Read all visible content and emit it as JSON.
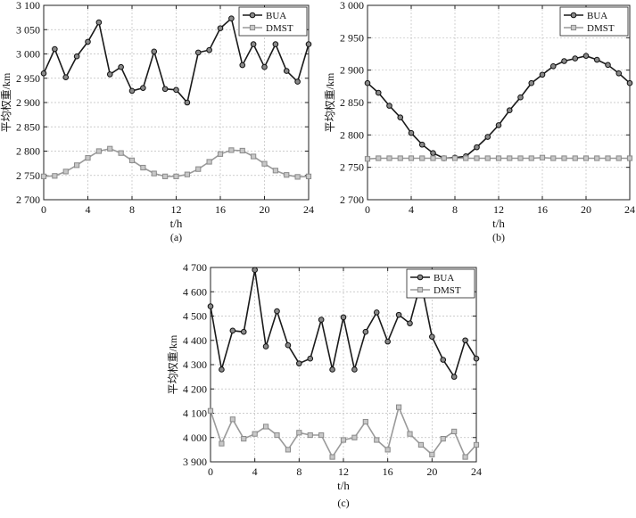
{
  "chart_data": [
    {
      "type": "line",
      "caption": "(a)",
      "xlabel": "t/h",
      "ylabel": "平均权重/km",
      "xlim": [
        0,
        24
      ],
      "ylim": [
        2700,
        3100
      ],
      "xticks": [
        0,
        4,
        8,
        12,
        16,
        20,
        24
      ],
      "yticks": [
        2700,
        2750,
        2800,
        2850,
        2900,
        2950,
        3000,
        3050,
        3100
      ],
      "ytick_labels": [
        "2 700",
        "2 750",
        "2 800",
        "2 850",
        "2 900",
        "2 950",
        "3 000",
        "3 050",
        "3 100"
      ],
      "grid": true,
      "legend": "top-right",
      "x": [
        0,
        1,
        2,
        3,
        4,
        5,
        6,
        7,
        8,
        9,
        10,
        11,
        12,
        13,
        14,
        15,
        16,
        17,
        18,
        19,
        20,
        21,
        22,
        23,
        24
      ],
      "series": [
        {
          "name": "BUA",
          "color": "#1a1a1a",
          "values": [
            2960,
            3010,
            2952,
            2995,
            3025,
            3065,
            2958,
            2973,
            2924,
            2930,
            3005,
            2928,
            2926,
            2900,
            3003,
            3008,
            3053,
            3073,
            2977,
            3020,
            2973,
            3020,
            2965,
            2943,
            3020
          ]
        },
        {
          "name": "DMST",
          "color": "#9a9a9a",
          "values": [
            2748,
            2749,
            2758,
            2771,
            2786,
            2800,
            2805,
            2796,
            2781,
            2766,
            2754,
            2748,
            2748,
            2752,
            2763,
            2778,
            2794,
            2802,
            2801,
            2789,
            2774,
            2760,
            2751,
            2747,
            2748
          ]
        }
      ]
    },
    {
      "type": "line",
      "caption": "(b)",
      "xlabel": "t/h",
      "ylabel": "平均权重/km",
      "xlim": [
        0,
        24
      ],
      "ylim": [
        2700,
        3000
      ],
      "xticks": [
        0,
        4,
        8,
        12,
        16,
        20,
        24
      ],
      "yticks": [
        2700,
        2750,
        2800,
        2850,
        2900,
        2950,
        3000
      ],
      "ytick_labels": [
        "2 700",
        "2 750",
        "2 800",
        "2 850",
        "2 900",
        "2 950",
        "3 000"
      ],
      "grid": true,
      "legend": "top-right",
      "x": [
        0,
        1,
        2,
        3,
        4,
        5,
        6,
        7,
        8,
        9,
        10,
        11,
        12,
        13,
        14,
        15,
        16,
        17,
        18,
        19,
        20,
        21,
        22,
        23,
        24
      ],
      "series": [
        {
          "name": "BUA",
          "color": "#1a1a1a",
          "values": [
            2880,
            2865,
            2845,
            2827,
            2803,
            2785,
            2772,
            2764,
            2765,
            2767,
            2781,
            2797,
            2815,
            2838,
            2858,
            2880,
            2893,
            2906,
            2914,
            2918,
            2922,
            2916,
            2908,
            2895,
            2880
          ]
        },
        {
          "name": "DMST",
          "color": "#9a9a9a",
          "values": [
            2763,
            2764,
            2764,
            2764,
            2764,
            2764,
            2764,
            2764,
            2764,
            2764,
            2764,
            2764,
            2764,
            2764,
            2764,
            2764,
            2765,
            2764,
            2764,
            2764,
            2764,
            2764,
            2764,
            2764,
            2764
          ]
        }
      ]
    },
    {
      "type": "line",
      "caption": "(c)",
      "xlabel": "t/h",
      "ylabel": "平均权重/km",
      "xlim": [
        0,
        24
      ],
      "ylim": [
        3900,
        4700
      ],
      "xticks": [
        0,
        4,
        8,
        12,
        16,
        20,
        24
      ],
      "yticks": [
        3900,
        4000,
        4100,
        4200,
        4300,
        4400,
        4500,
        4600,
        4700
      ],
      "ytick_labels": [
        "3 900",
        "4 000",
        "4 100",
        "4 200",
        "4 300",
        "4 400",
        "4 500",
        "4 600",
        "4 700"
      ],
      "grid": true,
      "legend": "top-right",
      "x": [
        0,
        1,
        2,
        3,
        4,
        5,
        6,
        7,
        8,
        9,
        10,
        11,
        12,
        13,
        14,
        15,
        16,
        17,
        18,
        19,
        20,
        21,
        22,
        23,
        24
      ],
      "series": [
        {
          "name": "BUA",
          "color": "#1a1a1a",
          "values": [
            4540,
            4280,
            4440,
            4435,
            4690,
            4375,
            4520,
            4380,
            4305,
            4325,
            4485,
            4280,
            4495,
            4280,
            4435,
            4515,
            4395,
            4505,
            4470,
            4640,
            4415,
            4320,
            4250,
            4400,
            4325
          ]
        },
        {
          "name": "DMST",
          "color": "#9a9a9a",
          "values": [
            4110,
            3975,
            4075,
            3995,
            4015,
            4045,
            4010,
            3950,
            4020,
            4010,
            4010,
            3920,
            3990,
            4000,
            4065,
            3990,
            3950,
            4125,
            4015,
            3970,
            3930,
            3995,
            4025,
            3920,
            3970
          ]
        }
      ]
    }
  ]
}
